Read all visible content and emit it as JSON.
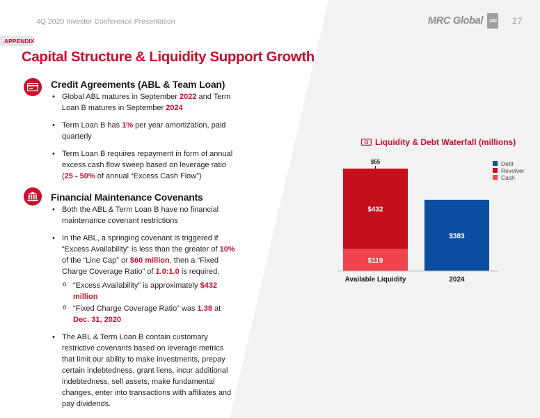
{
  "header": {
    "subtitle": "4Q 2020 Investor Conference Presentation",
    "logo_text": "MRC Global",
    "logo_badge": "100",
    "page_number": "27"
  },
  "appendix_tag": "APPENDIX",
  "title": "Capital Structure & Liquidity Support Growth",
  "section_credit": {
    "icon": "credit-card-icon",
    "title": "Credit Agreements (ABL & Team Loan)",
    "bullet1": {
      "a": "Global ABL matures in September ",
      "b": "2022",
      "c": " and Term Loan B matures in September ",
      "d": "2024"
    },
    "bullet2": {
      "a": "Term Loan B has ",
      "b": "1%",
      "c": " per year amortization, paid quarterly"
    },
    "bullet3": {
      "a": "Term Loan B requires repayment in form of annual excess cash flow sweep based on leverage ratio (",
      "b": "25 - 50%",
      "c": " of annual “Excess Cash Flow”)"
    }
  },
  "section_covenants": {
    "icon": "bank-building-icon",
    "title": "Financial Maintenance Covenants",
    "bullet1": "Both the ABL & Term Loan B have no financial maintenance covenant restrictions",
    "bullet2": {
      "a": "In the ABL, a springing covenant is triggered if “Excess Availability” is less than the greater of ",
      "b": "10%",
      "c": " of the “Line Cap” or ",
      "d": "$60 million",
      "e": ", then a “Fixed Charge Coverage Ratio” of ",
      "f": "1.0:1.0",
      "g": " is required."
    },
    "sub1": {
      "a": "“Excess Availability” is approximately ",
      "b": "$432 million"
    },
    "sub2": {
      "a": "“Fixed Charge Coverage Ratio” was ",
      "b": "1.38",
      "c": " at ",
      "d": "Dec. 31, 2020"
    },
    "bullet3": "The ABL & Term Loan B contain customary restrictive covenants based on leverage metrics that limit our ability to make investments, prepay certain indebtedness, grant liens, incur additional indebtedness, sell assets, make fundamental changes, enter into transactions with affiliates and pay dividends."
  },
  "colors": {
    "accent": "#c8102e",
    "cash": "#f0434d",
    "revolver": "#c40f1d",
    "debt": "#0a4ea1"
  },
  "chart_data": {
    "type": "bar",
    "stacked": true,
    "title": "Liquidity & Debt Waterfall (millions)",
    "title_icon": "money-icon",
    "categories": [
      "Available Liquidity",
      "2024"
    ],
    "series": [
      {
        "name": "Debt",
        "values": [
          0,
          383
        ],
        "labels": [
          "",
          "$383"
        ],
        "color": "#0a4ea1"
      },
      {
        "name": "Revolver",
        "values": [
          432,
          0
        ],
        "labels": [
          "$432",
          ""
        ],
        "color": "#c40f1d"
      },
      {
        "name": "Cash",
        "values": [
          119,
          0
        ],
        "labels": [
          "$119",
          ""
        ],
        "color": "#f0434d"
      }
    ],
    "annotation": {
      "category": "Available Liquidity",
      "label": "$55",
      "value": 55
    },
    "legend_position": "right",
    "grid": false
  }
}
